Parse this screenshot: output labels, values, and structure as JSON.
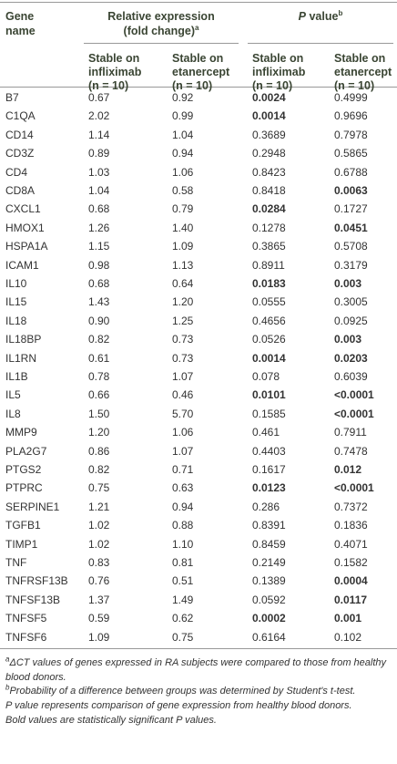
{
  "header": {
    "gene": [
      "Gene",
      "name"
    ],
    "relative_expression": {
      "lines": [
        "Relative expression",
        "(fold change)"
      ],
      "sup": "a"
    },
    "p_value": {
      "italic": "P",
      "text": " value",
      "sup": "b"
    },
    "subcolumns": [
      [
        "Stable on",
        "infliximab",
        "(n = 10)"
      ],
      [
        "Stable on",
        "etanercept",
        "(n = 10)"
      ],
      [
        "Stable on",
        "infliximab",
        "(n = 10)"
      ],
      [
        "Stable on",
        "etanercept",
        "(n = 10)"
      ]
    ]
  },
  "table": {
    "rows": [
      [
        "B7",
        "0.67",
        "0.92",
        "0.0024",
        "0.4999"
      ],
      [
        "C1QA",
        "2.02",
        "0.99",
        "0.0014",
        "0.9696"
      ],
      [
        "CD14",
        "1.14",
        "1.04",
        "0.3689",
        "0.7978"
      ],
      [
        "CD3Z",
        "0.89",
        "0.94",
        "0.2948",
        "0.5865"
      ],
      [
        "CD4",
        "1.03",
        "1.06",
        "0.8423",
        "0.6788"
      ],
      [
        "CD8A",
        "1.04",
        "0.58",
        "0.8418",
        "0.0063"
      ],
      [
        "CXCL1",
        "0.68",
        "0.79",
        "0.0284",
        "0.1727"
      ],
      [
        "HMOX1",
        "1.26",
        "1.40",
        "0.1278",
        "0.0451"
      ],
      [
        "HSPA1A",
        "1.15",
        "1.09",
        "0.3865",
        "0.5708"
      ],
      [
        "ICAM1",
        "0.98",
        "1.13",
        "0.8911",
        "0.3179"
      ],
      [
        "IL10",
        "0.68",
        "0.64",
        "0.0183",
        "0.003"
      ],
      [
        "IL15",
        "1.43",
        "1.20",
        "0.0555",
        "0.3005"
      ],
      [
        "IL18",
        "0.90",
        "1.25",
        "0.4656",
        "0.0925"
      ],
      [
        "IL18BP",
        "0.82",
        "0.73",
        "0.0526",
        "0.003"
      ],
      [
        "IL1RN",
        "0.61",
        "0.73",
        "0.0014",
        "0.0203"
      ],
      [
        "IL1B",
        "0.78",
        "1.07",
        "0.078",
        "0.6039"
      ],
      [
        "IL5",
        "0.66",
        "0.46",
        "0.0101",
        "<0.0001"
      ],
      [
        "IL8",
        "1.50",
        "5.70",
        "0.1585",
        "<0.0001"
      ],
      [
        "MMP9",
        "1.20",
        "1.06",
        "0.461",
        "0.7911"
      ],
      [
        "PLA2G7",
        "0.86",
        "1.07",
        "0.4403",
        "0.7478"
      ],
      [
        "PTGS2",
        "0.82",
        "0.71",
        "0.1617",
        "0.012"
      ],
      [
        "PTPRC",
        "0.75",
        "0.63",
        "0.0123",
        "<0.0001"
      ],
      [
        "SERPINE1",
        "1.21",
        "0.94",
        "0.286",
        "0.7372"
      ],
      [
        "TGFB1",
        "1.02",
        "0.88",
        "0.8391",
        "0.1836"
      ],
      [
        "TIMP1",
        "1.02",
        "1.10",
        "0.8459",
        "0.4071"
      ],
      [
        "TNF",
        "0.83",
        "0.81",
        "0.2149",
        "0.1582"
      ],
      [
        "TNFRSF13B",
        "0.76",
        "0.51",
        "0.1389",
        "0.0004"
      ],
      [
        "TNFSF13B",
        "1.37",
        "1.49",
        "0.0592",
        "0.0117"
      ],
      [
        "TNFSF5",
        "0.59",
        "0.62",
        "0.0002",
        "0.001"
      ],
      [
        "TNFSF6",
        "1.09",
        "0.75",
        "0.6164",
        "0.102"
      ]
    ],
    "bold_p": [
      [
        true,
        false
      ],
      [
        true,
        false
      ],
      [
        false,
        false
      ],
      [
        false,
        false
      ],
      [
        false,
        false
      ],
      [
        false,
        true
      ],
      [
        true,
        false
      ],
      [
        false,
        true
      ],
      [
        false,
        false
      ],
      [
        false,
        false
      ],
      [
        true,
        true
      ],
      [
        false,
        false
      ],
      [
        false,
        false
      ],
      [
        false,
        true
      ],
      [
        true,
        true
      ],
      [
        false,
        false
      ],
      [
        true,
        true
      ],
      [
        false,
        true
      ],
      [
        false,
        false
      ],
      [
        false,
        false
      ],
      [
        false,
        true
      ],
      [
        true,
        true
      ],
      [
        false,
        false
      ],
      [
        false,
        false
      ],
      [
        false,
        false
      ],
      [
        false,
        false
      ],
      [
        false,
        true
      ],
      [
        false,
        true
      ],
      [
        true,
        true
      ],
      [
        false,
        false
      ]
    ]
  },
  "footnotes": [
    {
      "marker": "a",
      "text": "ΔCT values of genes expressed in RA subjects were compared to those from healthy blood donors."
    },
    {
      "marker": "b",
      "text": "Probability of a difference between groups was determined by Student's t-test."
    }
  ],
  "notes": [
    "P value represents comparison of gene expression from healthy blood donors.",
    "Bold values are statistically significant P values."
  ]
}
